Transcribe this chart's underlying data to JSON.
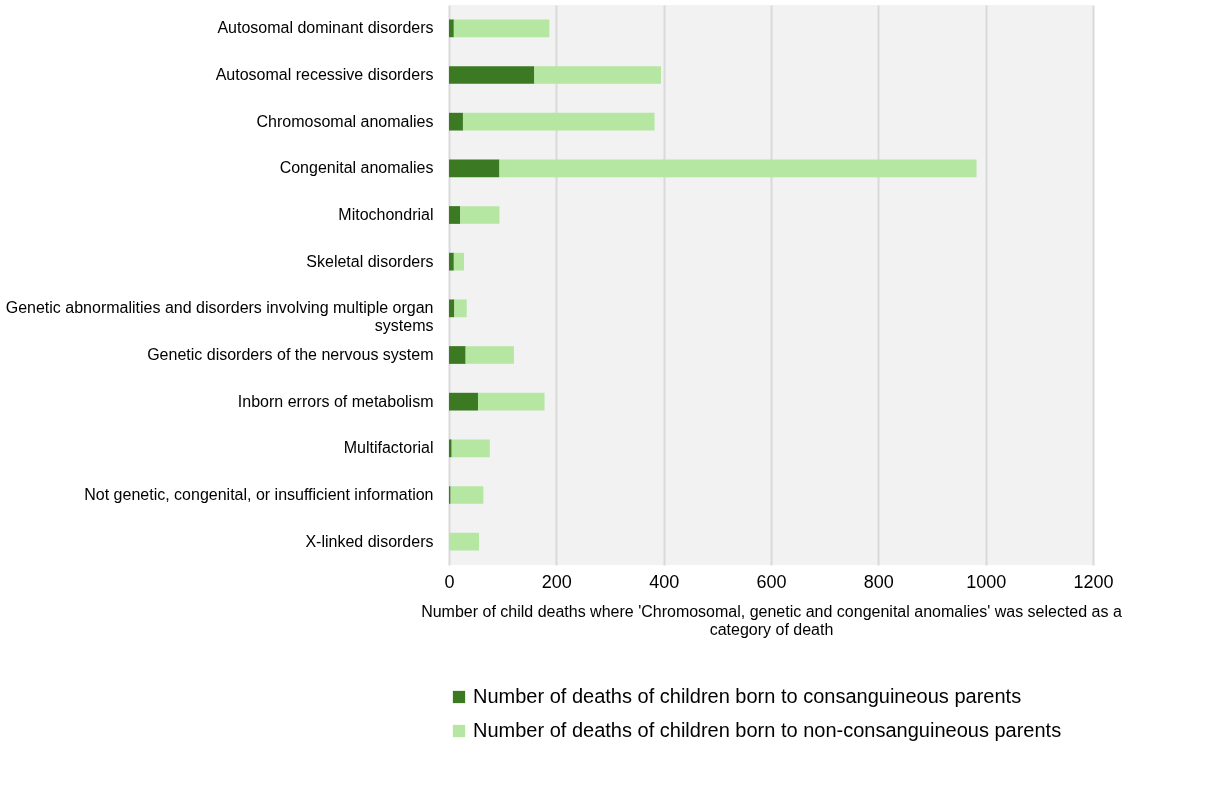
{
  "chart_data": {
    "type": "bar",
    "orientation": "horizontal",
    "stacked": true,
    "categories": [
      "Autosomal dominant disorders",
      "Autosomal recessive disorders",
      "Chromosomal anomalies",
      "Congenital anomalies",
      "Mitochondrial",
      "Skeletal disorders",
      "Genetic abnormalities and disorders involving multiple organ systems",
      "Genetic disorders of the nervous system",
      "Inborn errors of metabolism",
      "Multifactorial",
      "Not genetic, congenital, or insufficient information",
      "X-linked disorders"
    ],
    "series": [
      {
        "name": "Number of deaths of children born to consanguineous parents",
        "color": "#3b7a23",
        "values": [
          9,
          159,
          26,
          94,
          21,
          9,
          10,
          31,
          54,
          5,
          3,
          0
        ]
      },
      {
        "name": "Number of deaths of children born to non-consanguineous parents",
        "color": "#b5e6a2",
        "values": [
          178,
          236,
          357,
          889,
          73,
          19,
          23,
          90,
          124,
          71,
          61,
          56
        ]
      }
    ],
    "xlabel": "Number of child deaths where 'Chromosomal, genetic and congenital anomalies' was selected as a category of death",
    "xlim": [
      0,
      1200
    ],
    "xticks": [
      0,
      200,
      400,
      600,
      800,
      1000,
      1200
    ],
    "grid": "x",
    "legend": "bottom"
  }
}
